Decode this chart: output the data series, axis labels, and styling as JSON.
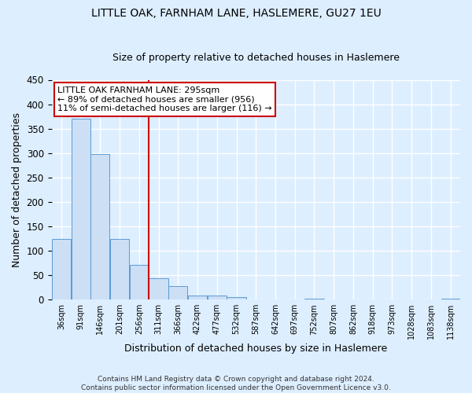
{
  "title": "LITTLE OAK, FARNHAM LANE, HASLEMERE, GU27 1EU",
  "subtitle": "Size of property relative to detached houses in Haslemere",
  "xlabel": "Distribution of detached houses by size in Haslemere",
  "ylabel": "Number of detached properties",
  "footer_line1": "Contains HM Land Registry data © Crown copyright and database right 2024.",
  "footer_line2": "Contains public sector information licensed under the Open Government Licence v3.0.",
  "bin_labels": [
    "36sqm",
    "91sqm",
    "146sqm",
    "201sqm",
    "256sqm",
    "311sqm",
    "366sqm",
    "422sqm",
    "477sqm",
    "532sqm",
    "587sqm",
    "642sqm",
    "697sqm",
    "752sqm",
    "807sqm",
    "862sqm",
    "918sqm",
    "973sqm",
    "1028sqm",
    "1083sqm",
    "1138sqm"
  ],
  "bar_heights": [
    125,
    370,
    298,
    124,
    71,
    44,
    27,
    9,
    9,
    5,
    0,
    0,
    0,
    2,
    0,
    0,
    1,
    0,
    1,
    0,
    2
  ],
  "bar_color": "#ccdff5",
  "bar_edge_color": "#5b9bd5",
  "annotation_title": "LITTLE OAK FARNHAM LANE: 295sqm",
  "annotation_line1": "← 89% of detached houses are smaller (956)",
  "annotation_line2": "11% of semi-detached houses are larger (116) →",
  "vline_x_index": 5,
  "vline_color": "#cc0000",
  "ylim": [
    0,
    450
  ],
  "background_color": "#ddeeff",
  "plot_bg_color": "#ddeeff",
  "grid_color": "#ffffff",
  "annotation_box_color": "#ffffff",
  "annotation_box_edge": "#cc0000"
}
